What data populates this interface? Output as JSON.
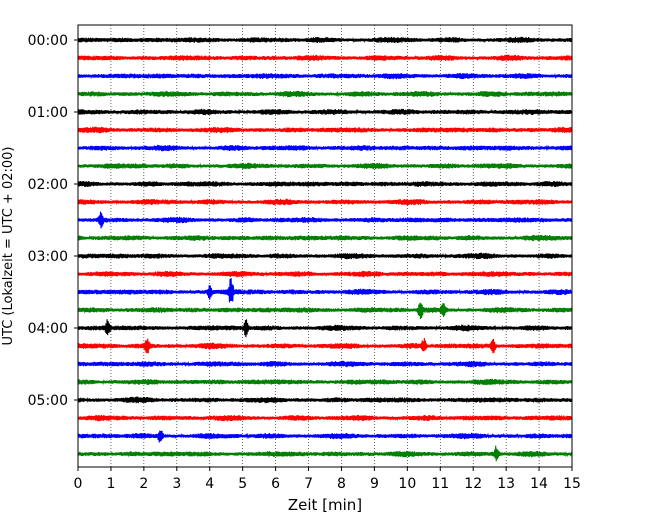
{
  "chart_data": {
    "type": "line",
    "title": "",
    "xlabel": "Zeit  [min]",
    "ylabel": "UTC (Lokalzeit = UTC + 02:00)",
    "xlim": [
      0,
      15
    ],
    "x_ticks": [
      0,
      1,
      2,
      3,
      4,
      5,
      6,
      7,
      8,
      9,
      10,
      11,
      12,
      13,
      14,
      15
    ],
    "y_tick_labels": [
      "00:00",
      "01:00",
      "02:00",
      "03:00",
      "04:00",
      "05:00"
    ],
    "y_tick_rows": [
      0,
      4,
      8,
      12,
      16,
      20
    ],
    "grid": "vertical dotted lines at each minute",
    "row_interval_minutes": 15,
    "row_count": 24,
    "colors": [
      "#000000",
      "#ff0000",
      "#0000ff",
      "#008000"
    ],
    "events": [
      {
        "row": 14,
        "minute": 4.65,
        "amplitude": 1.0
      },
      {
        "row": 14,
        "minute": 4.0,
        "amplitude": 0.45
      },
      {
        "row": 15,
        "minute": 10.4,
        "amplitude": 0.65
      },
      {
        "row": 15,
        "minute": 11.1,
        "amplitude": 0.6
      },
      {
        "row": 16,
        "minute": 5.1,
        "amplitude": 0.55
      },
      {
        "row": 16,
        "minute": 0.9,
        "amplitude": 0.5
      },
      {
        "row": 17,
        "minute": 2.1,
        "amplitude": 0.5
      },
      {
        "row": 17,
        "minute": 12.6,
        "amplitude": 0.55
      },
      {
        "row": 17,
        "minute": 10.5,
        "amplitude": 0.45
      },
      {
        "row": 10,
        "minute": 0.7,
        "amplitude": 0.5
      },
      {
        "row": 22,
        "minute": 2.5,
        "amplitude": 0.45
      },
      {
        "row": 23,
        "minute": 12.7,
        "amplitude": 0.5
      }
    ]
  }
}
